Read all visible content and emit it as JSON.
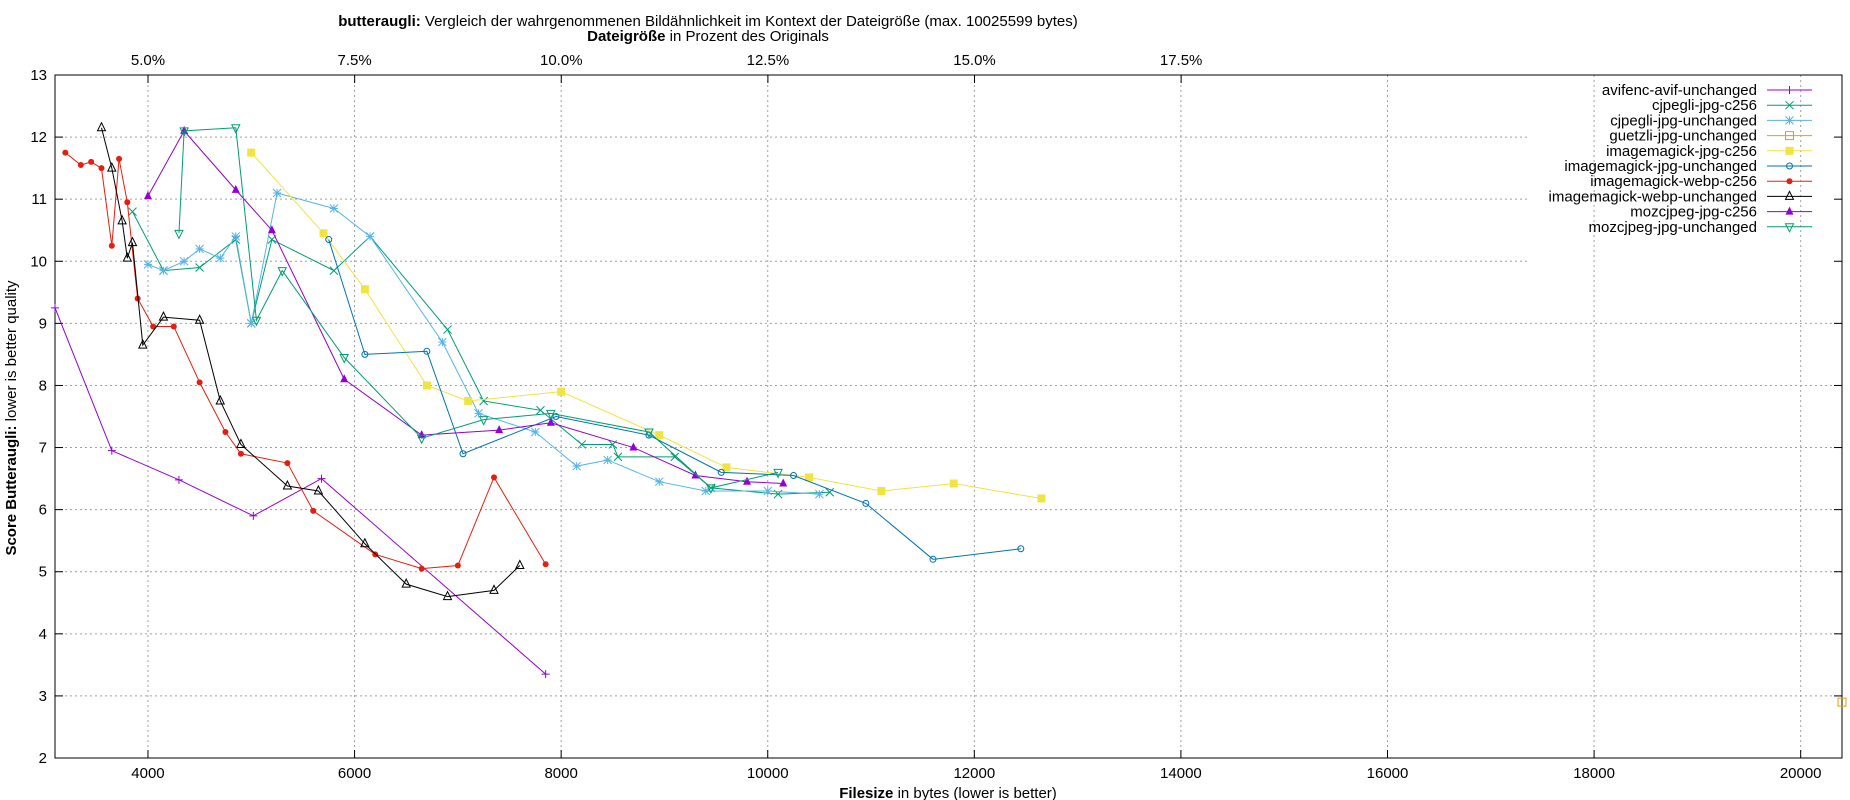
{
  "chart_data": {
    "type": "line",
    "title_bold": "butteraugli:",
    "title_rest": " Vergleich der wahrgenommenen Bildähnlichkeit im Kontext der Dateigröße (max. 10025599 bytes)",
    "x2label_bold": "Dateigröße",
    "x2label_rest": " in Prozent des Originals",
    "xlabel_bold": "Filesize",
    "xlabel_rest": " in bytes (lower is better)",
    "ylabel_bold": "Score Butteraugli:",
    "ylabel_rest": " lower is better quality",
    "xlim": [
      3100,
      20400
    ],
    "ylim": [
      2,
      13
    ],
    "xticks": [
      4000,
      6000,
      8000,
      10000,
      12000,
      14000,
      16000,
      18000,
      20000
    ],
    "yticks": [
      2,
      3,
      4,
      5,
      6,
      7,
      8,
      9,
      10,
      11,
      12,
      13
    ],
    "x2ticks": [
      {
        "label": "5.0%",
        "value": 5.0
      },
      {
        "label": "7.5%",
        "value": 7.5
      },
      {
        "label": "10.0%",
        "value": 10.0
      },
      {
        "label": "12.5%",
        "value": 12.5
      },
      {
        "label": "15.0%",
        "value": 15.0
      },
      {
        "label": "17.5%",
        "value": 17.5
      }
    ],
    "grid": true,
    "legend_position": "top-right",
    "series": [
      {
        "name": "avifenc-avif-unchanged",
        "color": "#9400d3",
        "marker": "plus",
        "points": [
          [
            3100,
            9.25
          ],
          [
            3650,
            6.95
          ],
          [
            4300,
            6.48
          ],
          [
            5020,
            5.9
          ],
          [
            5680,
            6.5
          ],
          [
            7850,
            3.35
          ]
        ]
      },
      {
        "name": "cjpegli-jpg-c256",
        "color": "#009e73",
        "marker": "x",
        "points": [
          [
            3850,
            10.8
          ],
          [
            4150,
            9.85
          ],
          [
            4500,
            9.9
          ],
          [
            4850,
            10.35
          ],
          [
            5000,
            9.0
          ],
          [
            5200,
            10.35
          ],
          [
            5800,
            9.85
          ],
          [
            6150,
            10.4
          ],
          [
            6900,
            8.9
          ],
          [
            7250,
            7.75
          ],
          [
            7800,
            7.6
          ],
          [
            8200,
            7.05
          ],
          [
            8500,
            7.05
          ],
          [
            8550,
            6.85
          ],
          [
            9100,
            6.85
          ],
          [
            9450,
            6.35
          ],
          [
            10100,
            6.25
          ],
          [
            10600,
            6.28
          ]
        ]
      },
      {
        "name": "cjpegli-jpg-unchanged",
        "color": "#56b4e9",
        "marker": "star",
        "points": [
          [
            4000,
            9.95
          ],
          [
            4150,
            9.85
          ],
          [
            4350,
            10.0
          ],
          [
            4500,
            10.2
          ],
          [
            4700,
            10.05
          ],
          [
            4850,
            10.4
          ],
          [
            5000,
            9.0
          ],
          [
            5250,
            11.1
          ],
          [
            5800,
            10.85
          ],
          [
            6150,
            10.4
          ],
          [
            6850,
            8.7
          ],
          [
            7200,
            7.55
          ],
          [
            7750,
            7.25
          ],
          [
            8150,
            6.7
          ],
          [
            8450,
            6.8
          ],
          [
            8950,
            6.45
          ],
          [
            9400,
            6.3
          ],
          [
            10000,
            6.3
          ],
          [
            10500,
            6.25
          ]
        ]
      },
      {
        "name": "guetzli-jpg-unchanged",
        "color": "#e69f00",
        "marker": "square",
        "points": [
          [
            20400,
            2.9
          ]
        ]
      },
      {
        "name": "imagemagick-jpg-c256",
        "color": "#f0e442",
        "marker": "square-filled",
        "points": [
          [
            5000,
            11.75
          ],
          [
            5700,
            10.45
          ],
          [
            6100,
            9.55
          ],
          [
            6700,
            8.0
          ],
          [
            7100,
            7.75
          ],
          [
            8000,
            7.9
          ],
          [
            8950,
            7.2
          ],
          [
            9600,
            6.68
          ],
          [
            10400,
            6.52
          ],
          [
            11100,
            6.3
          ],
          [
            11800,
            6.42
          ],
          [
            12650,
            6.18
          ]
        ]
      },
      {
        "name": "imagemagick-jpg-unchanged",
        "color": "#0072b2",
        "marker": "circle",
        "points": [
          [
            5750,
            10.35
          ],
          [
            6100,
            8.5
          ],
          [
            6700,
            8.55
          ],
          [
            7050,
            6.9
          ],
          [
            7950,
            7.5
          ],
          [
            8850,
            7.2
          ],
          [
            9550,
            6.6
          ],
          [
            10250,
            6.55
          ],
          [
            10950,
            6.1
          ],
          [
            11600,
            5.2
          ],
          [
            12450,
            5.37
          ]
        ]
      },
      {
        "name": "imagemagick-webp-c256",
        "color": "#e51e10",
        "marker": "circle-filled",
        "points": [
          [
            3200,
            11.75
          ],
          [
            3350,
            11.55
          ],
          [
            3450,
            11.6
          ],
          [
            3550,
            11.5
          ],
          [
            3650,
            10.25
          ],
          [
            3720,
            11.65
          ],
          [
            3800,
            10.95
          ],
          [
            3900,
            9.4
          ],
          [
            4050,
            8.95
          ],
          [
            4250,
            8.95
          ],
          [
            4500,
            8.05
          ],
          [
            4750,
            7.25
          ],
          [
            4900,
            6.9
          ],
          [
            5350,
            6.75
          ],
          [
            5600,
            5.98
          ],
          [
            6200,
            5.28
          ],
          [
            6650,
            5.05
          ],
          [
            7000,
            5.1
          ],
          [
            7350,
            6.52
          ],
          [
            7850,
            5.12
          ]
        ]
      },
      {
        "name": "imagemagick-webp-unchanged",
        "color": "#000000",
        "marker": "triangle",
        "points": [
          [
            3550,
            12.15
          ],
          [
            3650,
            11.5
          ],
          [
            3750,
            10.65
          ],
          [
            3800,
            10.05
          ],
          [
            3850,
            10.3
          ],
          [
            3950,
            8.65
          ],
          [
            4150,
            9.1
          ],
          [
            4500,
            9.05
          ],
          [
            4700,
            7.75
          ],
          [
            4900,
            7.05
          ],
          [
            5350,
            6.38
          ],
          [
            5650,
            6.3
          ],
          [
            6100,
            5.45
          ],
          [
            6500,
            4.8
          ],
          [
            6900,
            4.6
          ],
          [
            7350,
            4.7
          ],
          [
            7600,
            5.1
          ]
        ]
      },
      {
        "name": "mozcjpeg-jpg-c256",
        "color": "#9400d3",
        "marker": "triangle-filled",
        "points": [
          [
            4000,
            11.05
          ],
          [
            4350,
            12.1
          ],
          [
            4850,
            11.15
          ],
          [
            5200,
            10.5
          ],
          [
            5900,
            8.1
          ],
          [
            6650,
            7.2
          ],
          [
            7400,
            7.28
          ],
          [
            7900,
            7.4
          ],
          [
            8700,
            7.0
          ],
          [
            9300,
            6.55
          ],
          [
            9800,
            6.45
          ],
          [
            10150,
            6.42
          ]
        ]
      },
      {
        "name": "mozcjpeg-jpg-unchanged",
        "color": "#009e73",
        "marker": "triangle-down",
        "points": [
          [
            4300,
            10.45
          ],
          [
            4350,
            12.1
          ],
          [
            4850,
            12.15
          ],
          [
            5050,
            9.05
          ],
          [
            5300,
            9.85
          ],
          [
            5900,
            8.45
          ],
          [
            6650,
            7.15
          ],
          [
            7250,
            7.45
          ],
          [
            7900,
            7.55
          ],
          [
            8850,
            7.25
          ],
          [
            9450,
            6.35
          ],
          [
            10100,
            6.6
          ]
        ]
      }
    ]
  }
}
